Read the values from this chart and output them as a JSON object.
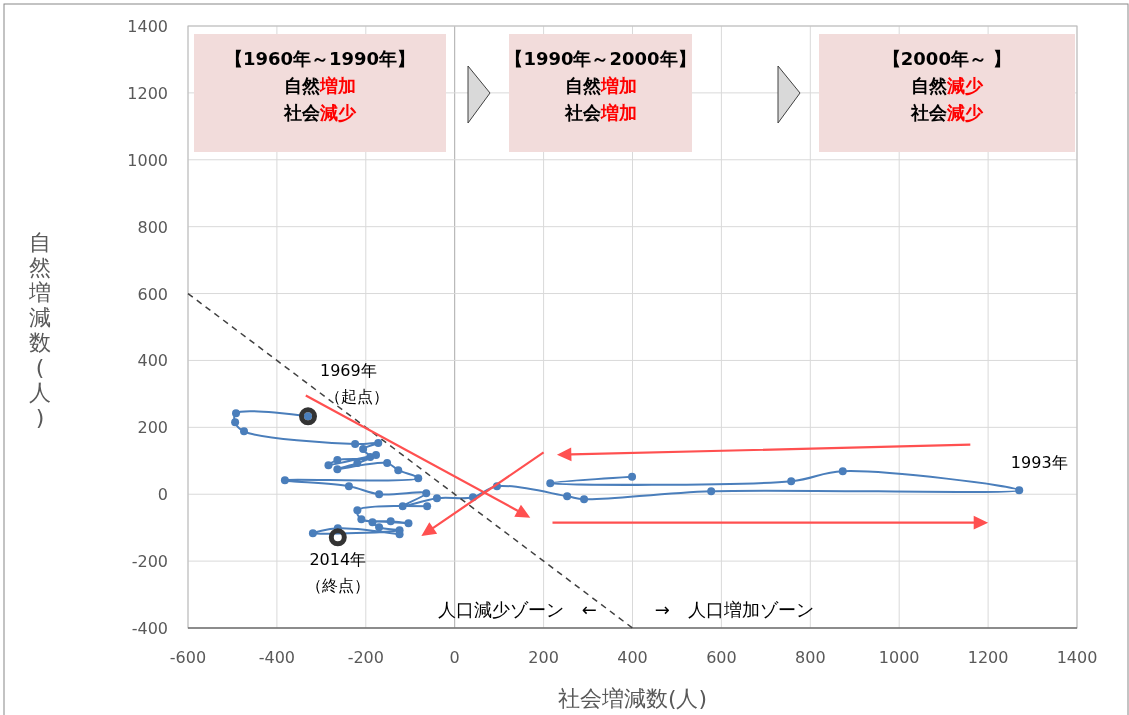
{
  "chart_data": {
    "type": "line",
    "xlabel": "社会増減数(人)",
    "ylabel": "自然増減数(人)",
    "xlim": [
      -600,
      1400
    ],
    "xticks": [
      -600,
      -400,
      -200,
      0,
      200,
      400,
      600,
      800,
      1000,
      1200,
      1400
    ],
    "ylim": [
      -400,
      1400
    ],
    "yticks": [
      -400,
      -200,
      0,
      200,
      400,
      600,
      800,
      1000,
      1200,
      1400
    ],
    "grid": true,
    "marker": "circle",
    "series": [
      {
        "color": "#4a7ebb",
        "x": [
          -330,
          -492,
          -494,
          -474,
          -224,
          -172,
          -206,
          -190,
          -264,
          -284,
          -177,
          -219,
          -264,
          -152,
          -127,
          -82,
          -382,
          -238,
          -170,
          -64,
          -117,
          -40,
          41,
          95,
          253,
          291,
          577,
          1270,
          873,
          757,
          215,
          399
        ],
        "values": [
          233,
          242,
          215,
          188,
          150,
          153,
          135,
          111,
          102,
          87,
          117,
          93,
          75,
          93,
          72,
          48,
          42,
          24,
          0,
          3,
          -36,
          -12,
          -9,
          24,
          -6,
          -15,
          9,
          12,
          69,
          39,
          33,
          52
        ]
      },
      {
        "color": "#4a7ebb",
        "x": [
          -62,
          -219,
          -210,
          -144,
          -104,
          -185,
          -170,
          -124,
          -319,
          -263,
          -124
        ],
        "values": [
          -36,
          -48,
          -75,
          -81,
          -87,
          -84,
          -99,
          -108,
          -117,
          -102,
          -120
        ]
      },
      {
        "color": "#404040",
        "x": [
          -600,
          400
        ],
        "values": [
          600,
          -400
        ],
        "line_style": "dashed",
        "marker": "none"
      },
      {
        "type": "scatter",
        "color": "#333333",
        "x": [
          -330,
          -263
        ],
        "values": [
          233,
          -129
        ]
      }
    ],
    "annotations": [
      "【1960年～1990年】自然増加社会減少",
      "【1990年～2000年】自然増加社会増加",
      "【2000年～ 】自然減少社会減少",
      {
        "text": "1969年（起点）",
        "x": -330,
        "y": 233
      },
      {
        "text": "2014年（終点）",
        "x": -263,
        "y": -129
      },
      {
        "text": "1993年",
        "x": 1270,
        "y": 12
      },
      "人口減少ゾーン　←",
      "→　人口増加ゾーン"
    ]
  }
}
